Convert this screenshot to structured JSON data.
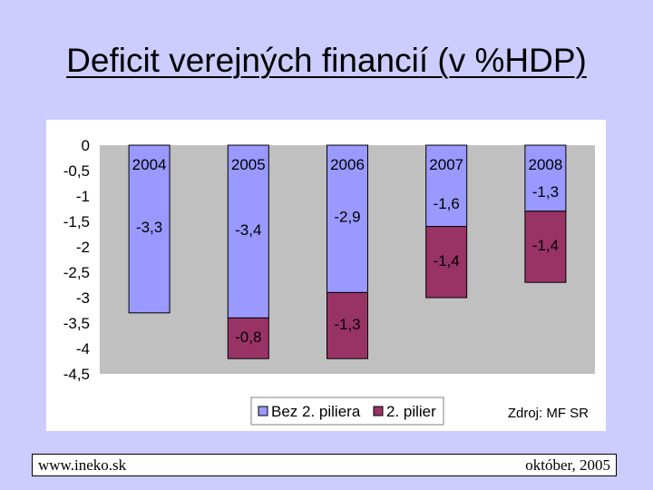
{
  "slide": {
    "title": "Deficit verejných financií (v %HDP)",
    "footer_left": "www.ineko.sk",
    "footer_right": "október, 2005"
  },
  "chart_data": {
    "type": "bar",
    "stacked": true,
    "categories": [
      "2004",
      "2005",
      "2006",
      "2007",
      "2008"
    ],
    "series": [
      {
        "name": "Bez 2. piliera",
        "values": [
          -3.3,
          -3.4,
          -2.9,
          -1.6,
          -1.3
        ],
        "labels": [
          "-3,3",
          "-3,4",
          "-2,9",
          "-1,6",
          "-1,3"
        ],
        "color": "#9999ff"
      },
      {
        "name": "2. pilier",
        "values": [
          0,
          -0.8,
          -1.3,
          -1.4,
          -1.4
        ],
        "labels": [
          "",
          "-0,8",
          "-1,3",
          "-1,4",
          "-1,4"
        ],
        "color": "#993366"
      }
    ],
    "y_ticks": [
      0,
      -0.5,
      -1,
      -1.5,
      -2,
      -2.5,
      -3,
      -3.5,
      -4,
      -4.5
    ],
    "y_tick_labels": [
      "0",
      "-0,5",
      "-1",
      "-1,5",
      "-2",
      "-2,5",
      "-3",
      "-3,5",
      "-4",
      "-4,5"
    ],
    "ylim": [
      -4.5,
      0
    ],
    "grid": false,
    "legend": "bottom",
    "plot_background": "#c0c0c0",
    "source_note": "Zdroj: MF SR"
  }
}
